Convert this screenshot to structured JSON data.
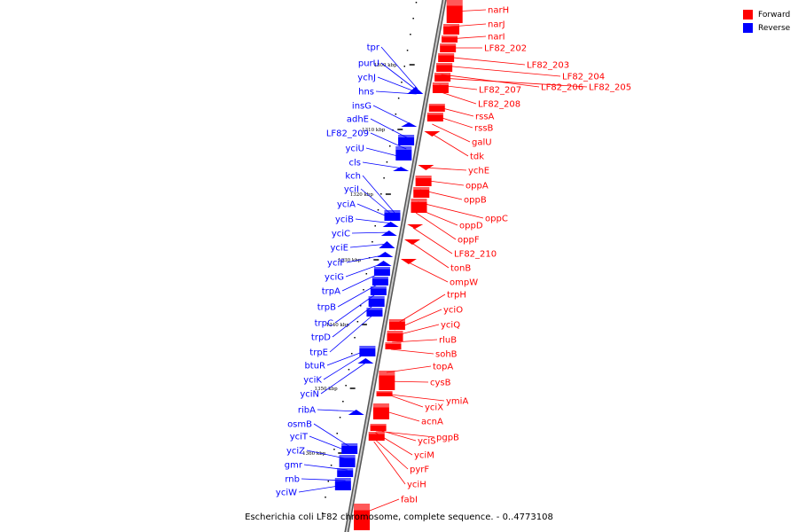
{
  "caption": "Escherichia coli LF82 chromosome, complete sequence. - 0..4773108",
  "legend": [
    {
      "label": "Forward",
      "color": "#ff0000"
    },
    {
      "label": "Reverse",
      "color": "#0000ff"
    }
  ],
  "colors": {
    "forward": "#ff0000",
    "reverse": "#0000ff",
    "axis": "#888888"
  },
  "ticks": [
    "1300 kbp",
    "1310 kbp",
    "1320 kbp",
    "1330 kbp",
    "1340 kbp",
    "1350 kbp",
    "1360 kbp"
  ],
  "forward_genes": [
    "narH",
    "narJ",
    "narI",
    "LF82_202",
    "LF82_203",
    "LF82_204",
    "LF82_206",
    "LF82_205",
    "LF82_207",
    "LF82_208",
    "rssA",
    "rssB",
    "galU",
    "tdk",
    "ychE",
    "oppA",
    "oppB",
    "oppC",
    "oppD",
    "oppF",
    "LF82_210",
    "tonB",
    "ompW",
    "trpH",
    "yciO",
    "yciQ",
    "rluB",
    "sohB",
    "topA",
    "cysB",
    "ymiA",
    "yciX",
    "acnA",
    "yciS",
    "pgpB",
    "yciM",
    "pyrF",
    "yciH",
    "fabI"
  ],
  "reverse_genes": [
    "tpr",
    "purU",
    "ychJ",
    "hns",
    "insG",
    "adhE",
    "LF82_209",
    "yciU",
    "cls",
    "kch",
    "yciI",
    "yciA",
    "yciB",
    "yciC",
    "yciE",
    "yciF",
    "yciG",
    "trpA",
    "trpB",
    "trpC",
    "trpD",
    "trpE",
    "btuR",
    "yciK",
    "yciN",
    "ribA",
    "osmB",
    "yciT",
    "yciZ",
    "gmr",
    "rnb",
    "yciW"
  ]
}
